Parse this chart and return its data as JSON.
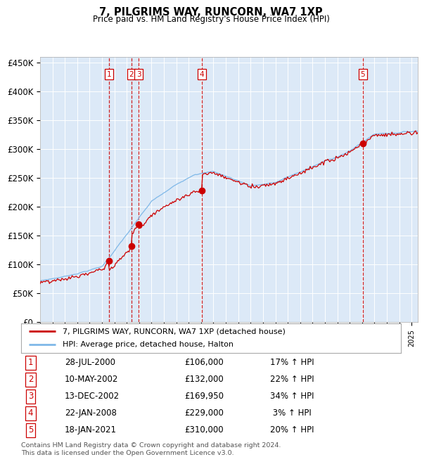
{
  "title": "7, PILGRIMS WAY, RUNCORN, WA7 1XP",
  "subtitle": "Price paid vs. HM Land Registry's House Price Index (HPI)",
  "ylim": [
    0,
    460000
  ],
  "yticks": [
    0,
    50000,
    100000,
    150000,
    200000,
    250000,
    300000,
    350000,
    400000,
    450000
  ],
  "ytick_labels": [
    "£0",
    "£50K",
    "£100K",
    "£150K",
    "£200K",
    "£250K",
    "£300K",
    "£350K",
    "£400K",
    "£450K"
  ],
  "background_color": "#dce9f7",
  "grid_color": "#ffffff",
  "hpi_line_color": "#7fb8e8",
  "price_line_color": "#cc0000",
  "sale_marker_color": "#cc0000",
  "vline_color": "#cc0000",
  "transactions": [
    {
      "label": "1",
      "date_year": 2000.57,
      "price": 106000
    },
    {
      "label": "2",
      "date_year": 2002.36,
      "price": 132000
    },
    {
      "label": "3",
      "date_year": 2002.95,
      "price": 169950
    },
    {
      "label": "4",
      "date_year": 2008.06,
      "price": 229000
    },
    {
      "label": "5",
      "date_year": 2021.05,
      "price": 310000
    }
  ],
  "legend_entries": [
    "7, PILGRIMS WAY, RUNCORN, WA7 1XP (detached house)",
    "HPI: Average price, detached house, Halton"
  ],
  "table_rows": [
    [
      "1",
      "28-JUL-2000",
      "£106,000",
      "17% ↑ HPI"
    ],
    [
      "2",
      "10-MAY-2002",
      "£132,000",
      "22% ↑ HPI"
    ],
    [
      "3",
      "13-DEC-2002",
      "£169,950",
      "34% ↑ HPI"
    ],
    [
      "4",
      "22-JAN-2008",
      "£229,000",
      " 3% ↑ HPI"
    ],
    [
      "5",
      "18-JAN-2021",
      "£310,000",
      "20% ↑ HPI"
    ]
  ],
  "footnote": "Contains HM Land Registry data © Crown copyright and database right 2024.\nThis data is licensed under the Open Government Licence v3.0.",
  "xmin": 1995.0,
  "xmax": 2025.5
}
